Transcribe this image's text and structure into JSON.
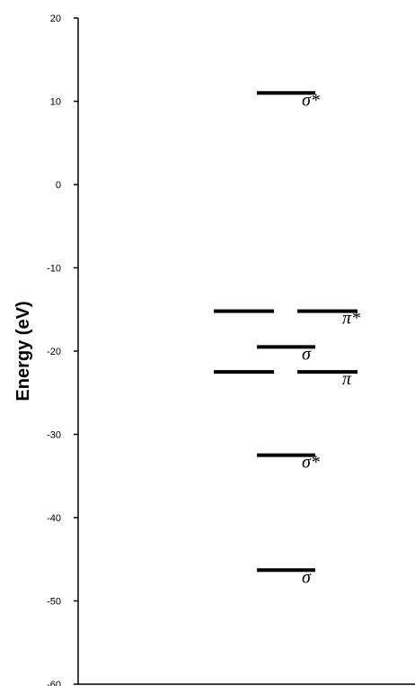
{
  "chart_data": {
    "type": "scatter",
    "ylabel": "Energy (eV)",
    "ylim": [
      -60,
      20
    ],
    "yticks": [
      20,
      10,
      0,
      -10,
      -20,
      -30,
      -40,
      -50,
      -60
    ],
    "grid": false,
    "levels": [
      {
        "column": "center",
        "energy": 11.0,
        "label": "σ*"
      },
      {
        "column": "left",
        "energy": -15.2,
        "label": ""
      },
      {
        "column": "right",
        "energy": -15.2,
        "label": "π*"
      },
      {
        "column": "center",
        "energy": -19.5,
        "label": "σ"
      },
      {
        "column": "left",
        "energy": -22.5,
        "label": ""
      },
      {
        "column": "right",
        "energy": -22.5,
        "label": "π"
      },
      {
        "column": "center",
        "energy": -32.5,
        "label": "σ*"
      },
      {
        "column": "center",
        "energy": -46.3,
        "label": "σ"
      }
    ]
  }
}
